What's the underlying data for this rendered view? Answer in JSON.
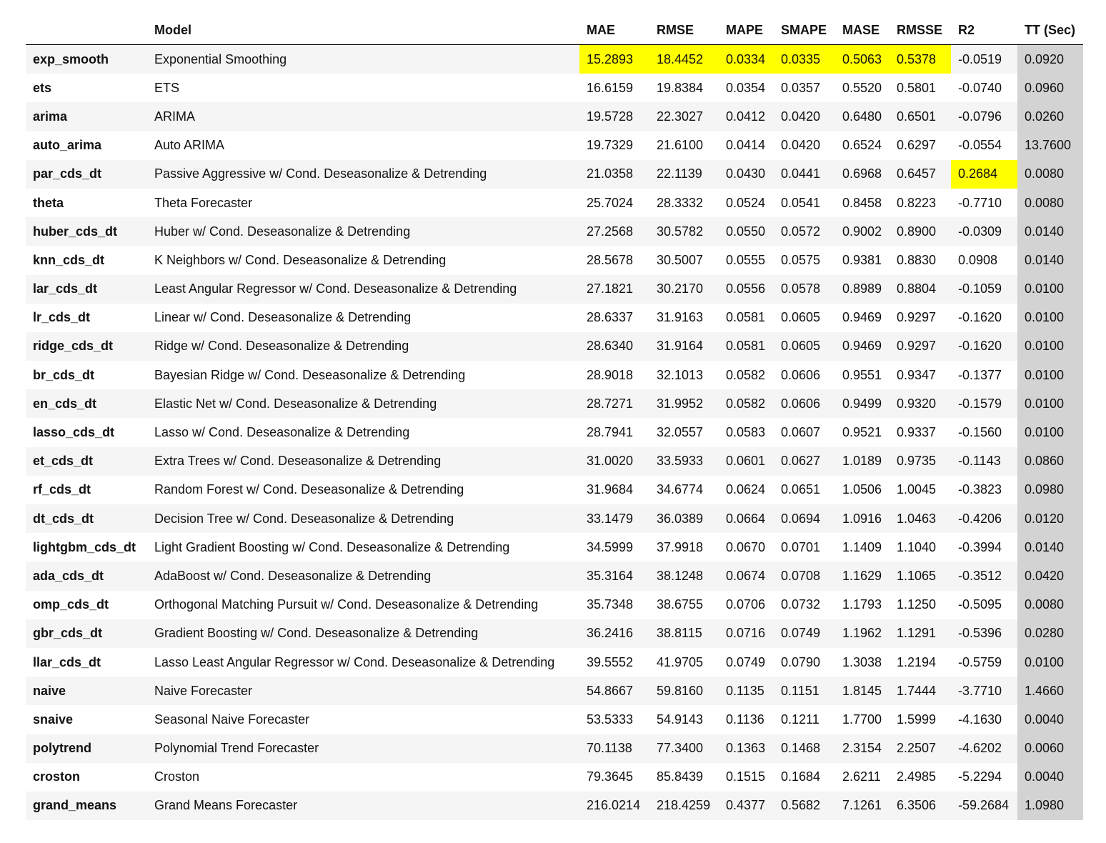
{
  "table": {
    "columns": [
      "Model",
      "MAE",
      "RMSE",
      "MAPE",
      "SMAPE",
      "MASE",
      "RMSSE",
      "R2",
      "TT (Sec)"
    ],
    "rows": [
      {
        "index": "exp_smooth",
        "cells": [
          "Exponential Smoothing",
          "15.2893",
          "18.4452",
          "0.0334",
          "0.0335",
          "0.5063",
          "0.5378",
          "-0.0519",
          "0.0920"
        ]
      },
      {
        "index": "ets",
        "cells": [
          "ETS",
          "16.6159",
          "19.8384",
          "0.0354",
          "0.0357",
          "0.5520",
          "0.5801",
          "-0.0740",
          "0.0960"
        ]
      },
      {
        "index": "arima",
        "cells": [
          "ARIMA",
          "19.5728",
          "22.3027",
          "0.0412",
          "0.0420",
          "0.6480",
          "0.6501",
          "-0.0796",
          "0.0260"
        ]
      },
      {
        "index": "auto_arima",
        "cells": [
          "Auto ARIMA",
          "19.7329",
          "21.6100",
          "0.0414",
          "0.0420",
          "0.6524",
          "0.6297",
          "-0.0554",
          "13.7600"
        ]
      },
      {
        "index": "par_cds_dt",
        "cells": [
          "Passive Aggressive w/ Cond. Deseasonalize & Detrending",
          "21.0358",
          "22.1139",
          "0.0430",
          "0.0441",
          "0.6968",
          "0.6457",
          "0.2684",
          "0.0080"
        ]
      },
      {
        "index": "theta",
        "cells": [
          "Theta Forecaster",
          "25.7024",
          "28.3332",
          "0.0524",
          "0.0541",
          "0.8458",
          "0.8223",
          "-0.7710",
          "0.0080"
        ]
      },
      {
        "index": "huber_cds_dt",
        "cells": [
          "Huber w/ Cond. Deseasonalize & Detrending",
          "27.2568",
          "30.5782",
          "0.0550",
          "0.0572",
          "0.9002",
          "0.8900",
          "-0.0309",
          "0.0140"
        ]
      },
      {
        "index": "knn_cds_dt",
        "cells": [
          "K Neighbors w/ Cond. Deseasonalize & Detrending",
          "28.5678",
          "30.5007",
          "0.0555",
          "0.0575",
          "0.9381",
          "0.8830",
          "0.0908",
          "0.0140"
        ]
      },
      {
        "index": "lar_cds_dt",
        "cells": [
          "Least Angular Regressor w/ Cond. Deseasonalize & Detrending",
          "27.1821",
          "30.2170",
          "0.0556",
          "0.0578",
          "0.8989",
          "0.8804",
          "-0.1059",
          "0.0100"
        ]
      },
      {
        "index": "lr_cds_dt",
        "cells": [
          "Linear w/ Cond. Deseasonalize & Detrending",
          "28.6337",
          "31.9163",
          "0.0581",
          "0.0605",
          "0.9469",
          "0.9297",
          "-0.1620",
          "0.0100"
        ]
      },
      {
        "index": "ridge_cds_dt",
        "cells": [
          "Ridge w/ Cond. Deseasonalize & Detrending",
          "28.6340",
          "31.9164",
          "0.0581",
          "0.0605",
          "0.9469",
          "0.9297",
          "-0.1620",
          "0.0100"
        ]
      },
      {
        "index": "br_cds_dt",
        "cells": [
          "Bayesian Ridge w/ Cond. Deseasonalize & Detrending",
          "28.9018",
          "32.1013",
          "0.0582",
          "0.0606",
          "0.9551",
          "0.9347",
          "-0.1377",
          "0.0100"
        ]
      },
      {
        "index": "en_cds_dt",
        "cells": [
          "Elastic Net w/ Cond. Deseasonalize & Detrending",
          "28.7271",
          "31.9952",
          "0.0582",
          "0.0606",
          "0.9499",
          "0.9320",
          "-0.1579",
          "0.0100"
        ]
      },
      {
        "index": "lasso_cds_dt",
        "cells": [
          "Lasso w/ Cond. Deseasonalize & Detrending",
          "28.7941",
          "32.0557",
          "0.0583",
          "0.0607",
          "0.9521",
          "0.9337",
          "-0.1560",
          "0.0100"
        ]
      },
      {
        "index": "et_cds_dt",
        "cells": [
          "Extra Trees w/ Cond. Deseasonalize & Detrending",
          "31.0020",
          "33.5933",
          "0.0601",
          "0.0627",
          "1.0189",
          "0.9735",
          "-0.1143",
          "0.0860"
        ]
      },
      {
        "index": "rf_cds_dt",
        "cells": [
          "Random Forest w/ Cond. Deseasonalize & Detrending",
          "31.9684",
          "34.6774",
          "0.0624",
          "0.0651",
          "1.0506",
          "1.0045",
          "-0.3823",
          "0.0980"
        ]
      },
      {
        "index": "dt_cds_dt",
        "cells": [
          "Decision Tree w/ Cond. Deseasonalize & Detrending",
          "33.1479",
          "36.0389",
          "0.0664",
          "0.0694",
          "1.0916",
          "1.0463",
          "-0.4206",
          "0.0120"
        ]
      },
      {
        "index": "lightgbm_cds_dt",
        "cells": [
          "Light Gradient Boosting w/ Cond. Deseasonalize & Detrending",
          "34.5999",
          "37.9918",
          "0.0670",
          "0.0701",
          "1.1409",
          "1.1040",
          "-0.3994",
          "0.0140"
        ]
      },
      {
        "index": "ada_cds_dt",
        "cells": [
          "AdaBoost w/ Cond. Deseasonalize & Detrending",
          "35.3164",
          "38.1248",
          "0.0674",
          "0.0708",
          "1.1629",
          "1.1065",
          "-0.3512",
          "0.0420"
        ]
      },
      {
        "index": "omp_cds_dt",
        "cells": [
          "Orthogonal Matching Pursuit w/ Cond. Deseasonalize & Detrending",
          "35.7348",
          "38.6755",
          "0.0706",
          "0.0732",
          "1.1793",
          "1.1250",
          "-0.5095",
          "0.0080"
        ]
      },
      {
        "index": "gbr_cds_dt",
        "cells": [
          "Gradient Boosting w/ Cond. Deseasonalize & Detrending",
          "36.2416",
          "38.8115",
          "0.0716",
          "0.0749",
          "1.1962",
          "1.1291",
          "-0.5396",
          "0.0280"
        ]
      },
      {
        "index": "llar_cds_dt",
        "cells": [
          "Lasso Least Angular Regressor w/ Cond. Deseasonalize & Detrending",
          "39.5552",
          "41.9705",
          "0.0749",
          "0.0790",
          "1.3038",
          "1.2194",
          "-0.5759",
          "0.0100"
        ]
      },
      {
        "index": "naive",
        "cells": [
          "Naive Forecaster",
          "54.8667",
          "59.8160",
          "0.1135",
          "0.1151",
          "1.8145",
          "1.7444",
          "-3.7710",
          "1.4660"
        ]
      },
      {
        "index": "snaive",
        "cells": [
          "Seasonal Naive Forecaster",
          "53.5333",
          "54.9143",
          "0.1136",
          "0.1211",
          "1.7700",
          "1.5999",
          "-4.1630",
          "0.0040"
        ]
      },
      {
        "index": "polytrend",
        "cells": [
          "Polynomial Trend Forecaster",
          "70.1138",
          "77.3400",
          "0.1363",
          "0.1468",
          "2.3154",
          "2.2507",
          "-4.6202",
          "0.0060"
        ]
      },
      {
        "index": "croston",
        "cells": [
          "Croston",
          "79.3645",
          "85.8439",
          "0.1515",
          "0.1684",
          "2.6211",
          "2.4985",
          "-5.2294",
          "0.0040"
        ]
      },
      {
        "index": "grand_means",
        "cells": [
          "Grand Means Forecaster",
          "216.0214",
          "218.4259",
          "0.4377",
          "0.5682",
          "7.1261",
          "6.3506",
          "-59.2684",
          "1.0980"
        ]
      }
    ],
    "highlight_color": "#ffff00",
    "highlighted": [
      [
        0,
        1
      ],
      [
        0,
        2
      ],
      [
        0,
        3
      ],
      [
        0,
        4
      ],
      [
        0,
        5
      ],
      [
        0,
        6
      ],
      [
        4,
        7
      ]
    ]
  }
}
